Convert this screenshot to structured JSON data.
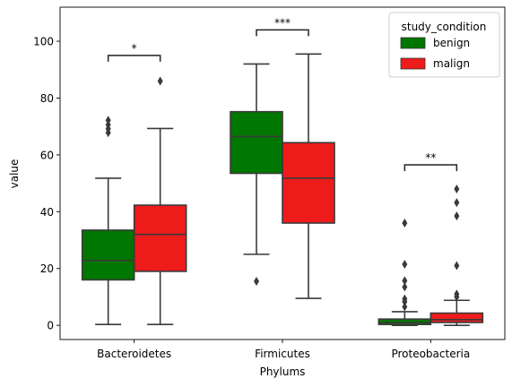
{
  "chart_data": {
    "type": "boxplot",
    "xlabel": "Phylums",
    "ylabel": "value",
    "ylim": [
      -5,
      112
    ],
    "yticks": [
      0,
      20,
      40,
      60,
      80,
      100
    ],
    "categories": [
      "Bacteroidetes",
      "Firmicutes",
      "Proteobacteria"
    ],
    "legend": {
      "title": "study_condition",
      "position": "top-right"
    },
    "series": [
      {
        "name": "benign",
        "color": "#007700",
        "boxes": [
          {
            "whislo": 0.3,
            "q1": 16,
            "med": 22.8,
            "q3": 33.5,
            "whishi": 51.8,
            "fliers": [
              67.8,
              69.2,
              70.6,
              72.2
            ]
          },
          {
            "whislo": 25,
            "q1": 53.5,
            "med": 66.5,
            "q3": 75.2,
            "whishi": 92,
            "fliers": [
              15.5
            ]
          },
          {
            "whislo": 0,
            "q1": 0.3,
            "med": 1.0,
            "q3": 2.2,
            "whishi": 4.8,
            "fliers": [
              6.5,
              8.3,
              9.3,
              13.5,
              15.7,
              21.5,
              36
            ]
          }
        ]
      },
      {
        "name": "malign",
        "color": "#ee1b1b",
        "boxes": [
          {
            "whislo": 0.3,
            "q1": 19,
            "med": 32,
            "q3": 42.3,
            "whishi": 69.3,
            "fliers": [
              86
            ]
          },
          {
            "whislo": 9.5,
            "q1": 36,
            "med": 51.8,
            "q3": 64.3,
            "whishi": 95.5,
            "fliers": []
          },
          {
            "whislo": 0,
            "q1": 1.0,
            "med": 2.0,
            "q3": 4.3,
            "whishi": 8.8,
            "fliers": [
              10,
              11,
              21,
              38.5,
              43.2,
              48
            ]
          }
        ]
      }
    ],
    "annotations": [
      {
        "category": "Bacteroidetes",
        "text": "*",
        "y": 95
      },
      {
        "category": "Firmicutes",
        "text": "***",
        "y": 104
      },
      {
        "category": "Proteobacteria",
        "text": "**",
        "y": 56.5
      }
    ]
  }
}
